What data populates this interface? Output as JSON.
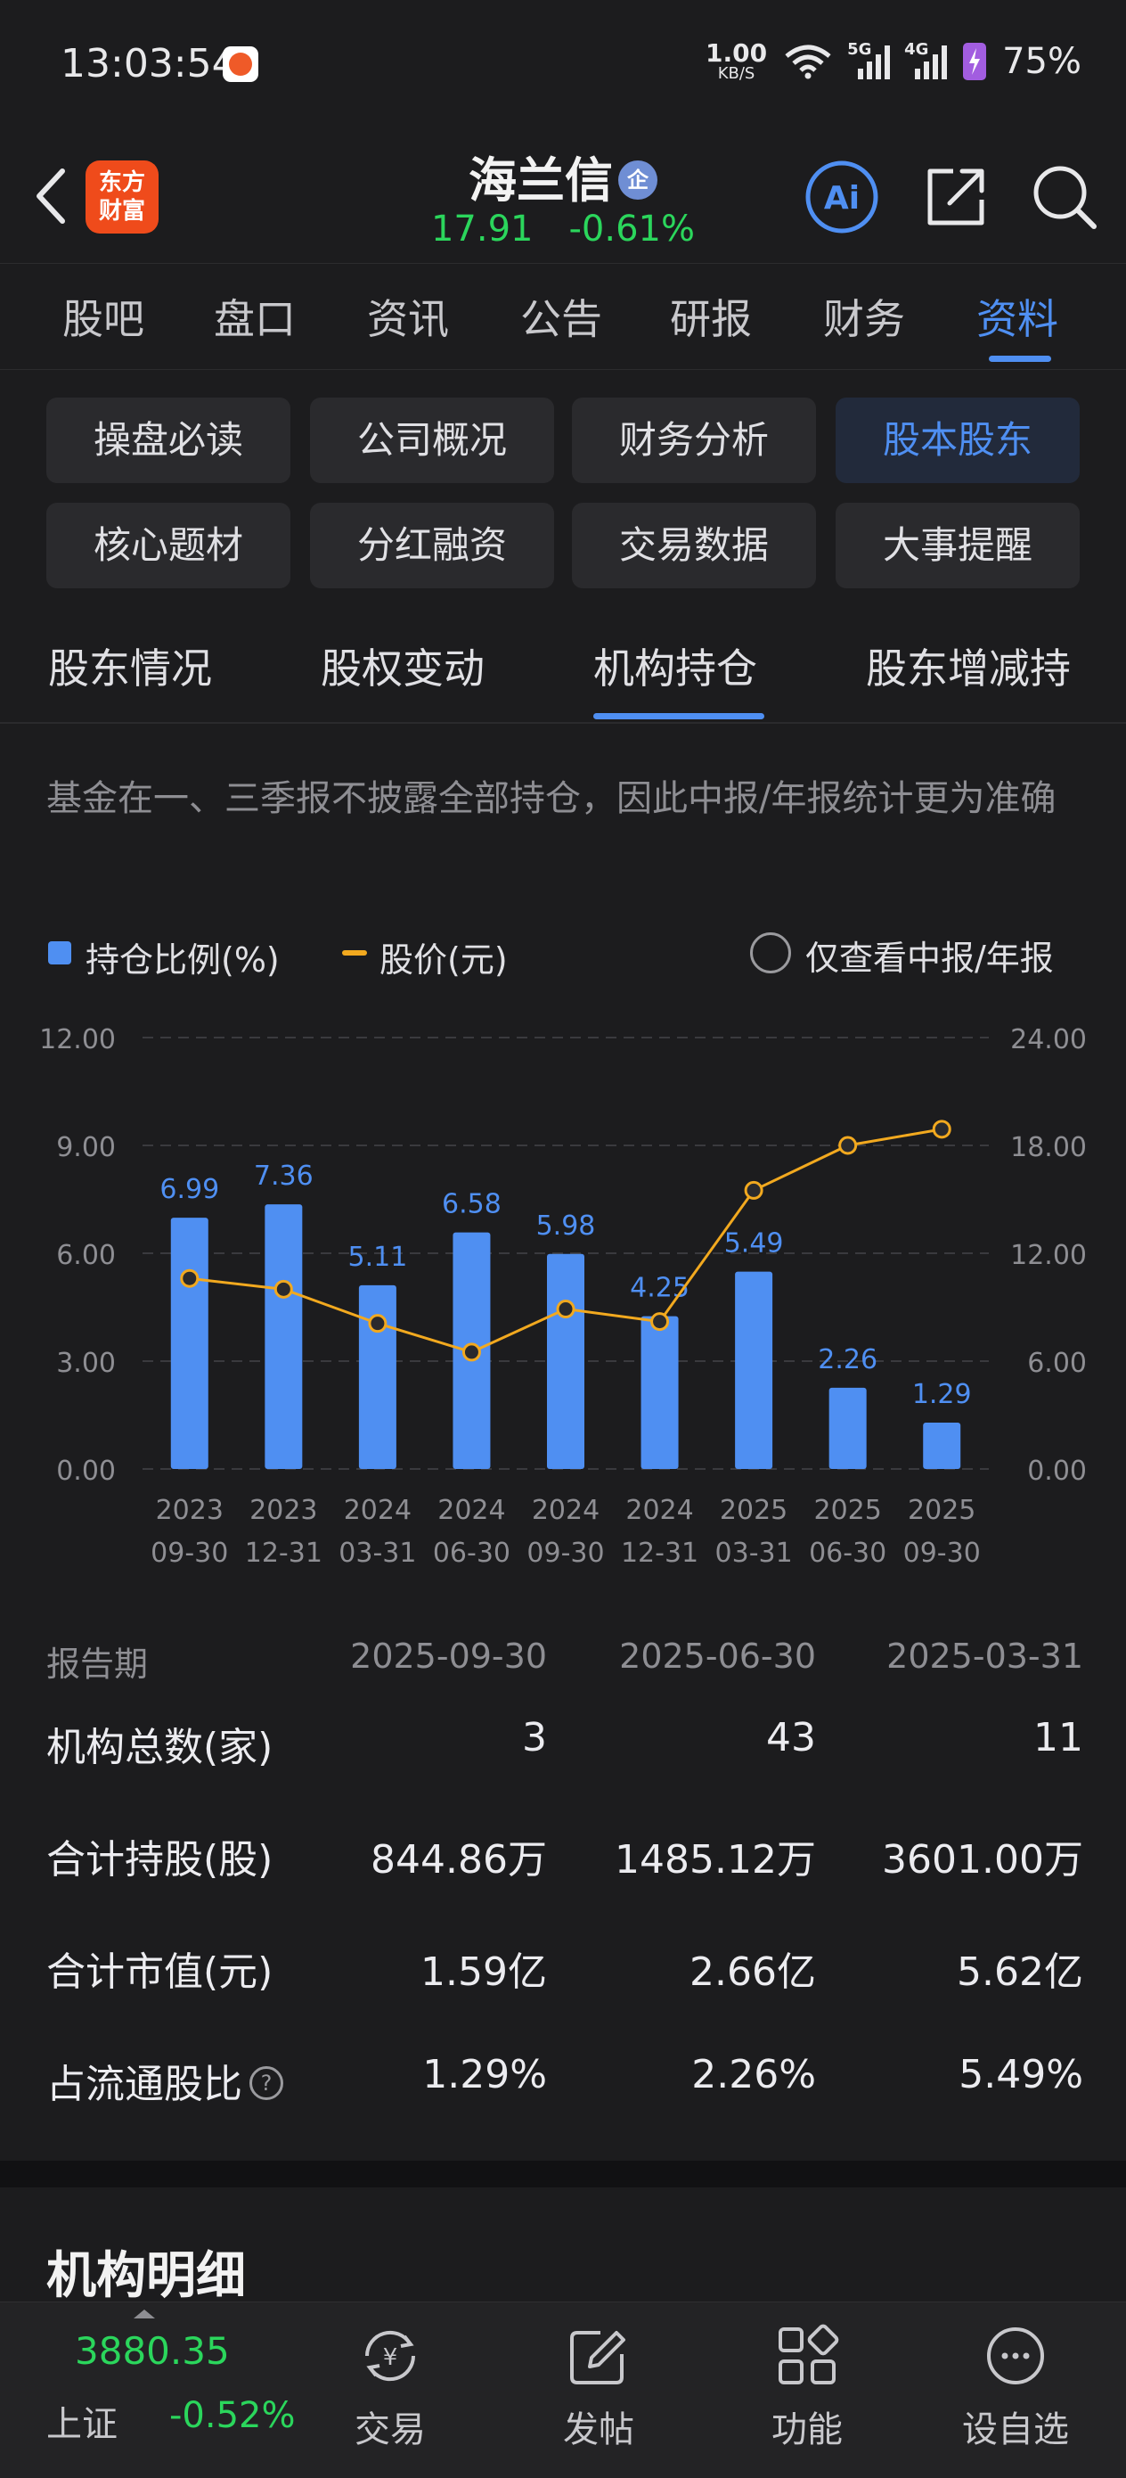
{
  "status_bar": {
    "time": "13:03:54",
    "speed_value": "1.00",
    "speed_unit": "KB/S",
    "sig1_tag": "5G",
    "sig2_tag": "4G",
    "battery": "75%"
  },
  "header": {
    "logo_line1": "东方",
    "logo_line2": "财富",
    "stock_name": "海兰信",
    "badge": "企",
    "price": "17.91",
    "change": "-0.61%",
    "ai_label": "Ai"
  },
  "main_tabs": [
    "股吧",
    "盘口",
    "资讯",
    "公告",
    "研报",
    "财务",
    "资料"
  ],
  "sub_buttons": [
    "操盘必读",
    "公司概况",
    "财务分析",
    "股本股东",
    "核心题材",
    "分红融资",
    "交易数据",
    "大事提醒"
  ],
  "sub_tabs": [
    "股东情况",
    "股权变动",
    "机构持仓",
    "股东增减持"
  ],
  "note": "基金在一、三季报不披露全部持仓，因此中报/年报统计更为准确",
  "legend": {
    "bar": "持仓比例(%)",
    "line": "股价(元)",
    "filter": "仅查看中报/年报"
  },
  "colors": {
    "accent": "#4f8ff2",
    "bar": "#4f8ff2",
    "line": "#f2a91f",
    "down": "#2bd65c",
    "background": "#1c1c1e"
  },
  "chart_data": {
    "type": "bar",
    "categories": [
      [
        "2023",
        "09-30"
      ],
      [
        "2023",
        "12-31"
      ],
      [
        "2024",
        "03-31"
      ],
      [
        "2024",
        "06-30"
      ],
      [
        "2024",
        "09-30"
      ],
      [
        "2024",
        "12-31"
      ],
      [
        "2025",
        "03-31"
      ],
      [
        "2025",
        "06-30"
      ],
      [
        "2025",
        "09-30"
      ]
    ],
    "series": [
      {
        "name": "持仓比例(%)",
        "type": "bar",
        "axis": "left",
        "values": [
          6.99,
          7.36,
          5.11,
          6.58,
          5.98,
          4.25,
          5.49,
          2.26,
          1.29
        ],
        "labels": [
          "6.99",
          "7.36",
          "5.11",
          "6.58",
          "5.98",
          "4.25",
          "5.49",
          "2.26",
          "1.29"
        ]
      },
      {
        "name": "股价(元)",
        "type": "line",
        "axis": "right",
        "values": [
          10.6,
          10.0,
          8.1,
          6.5,
          8.9,
          8.2,
          15.5,
          18.0,
          18.9
        ]
      }
    ],
    "y_left": {
      "min": 0,
      "max": 12,
      "ticks": [
        "0.00",
        "3.00",
        "6.00",
        "9.00",
        "12.00"
      ]
    },
    "y_right": {
      "min": 0,
      "max": 24,
      "ticks": [
        "0.00",
        "6.00",
        "12.00",
        "18.00",
        "24.00"
      ]
    },
    "grid": true,
    "legend_position": "top-left"
  },
  "table": {
    "header": {
      "label": "报告期",
      "cols": [
        "2025-09-30",
        "2025-06-30",
        "2025-03-31"
      ]
    },
    "rows": [
      {
        "label": "机构总数(家)",
        "cols": [
          "3",
          "43",
          "11"
        ]
      },
      {
        "label": "合计持股(股)",
        "cols": [
          "844.86万",
          "1485.12万",
          "3601.00万"
        ]
      },
      {
        "label": "合计市值(元)",
        "cols": [
          "1.59亿",
          "2.66亿",
          "5.62亿"
        ]
      },
      {
        "label": "占流通股比",
        "cols": [
          "1.29%",
          "2.26%",
          "5.49%"
        ],
        "help": "?"
      }
    ]
  },
  "section_title": "机构明细",
  "bottom_nav": {
    "index_value": "3880.35",
    "index_name": "上证",
    "index_change": "-0.52%",
    "items": [
      "交易",
      "发帖",
      "功能",
      "设自选"
    ]
  }
}
